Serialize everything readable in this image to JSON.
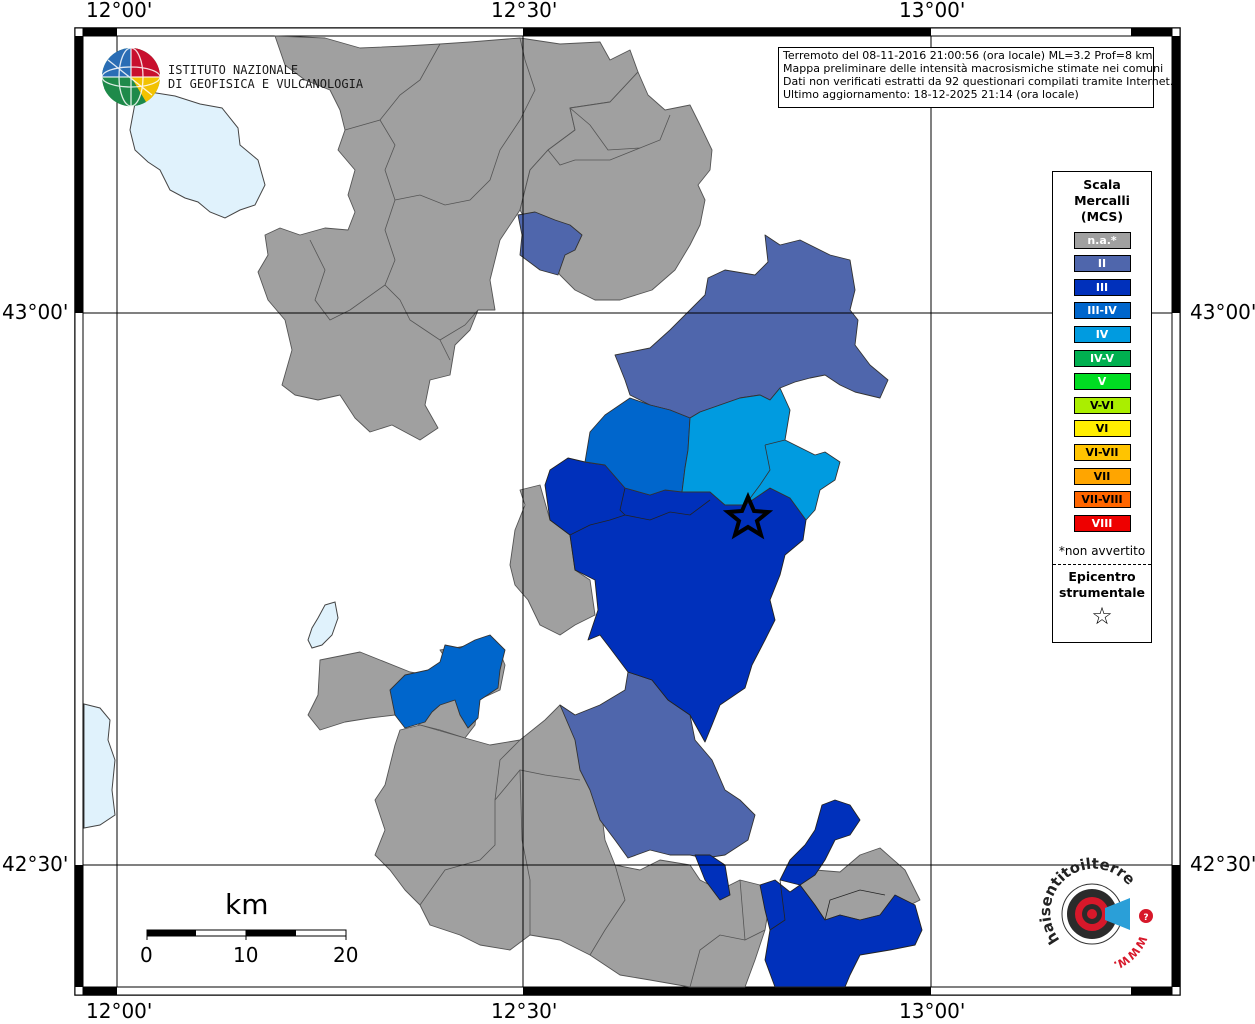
{
  "info": {
    "lines": [
      "Terremoto del 08-11-2016 21:00:56 (ora locale) ML=3.2 Prof=8 km",
      "Mappa preliminare delle intensità macrosismiche stimate nei comuni",
      "Dati non verificati estratti da 92 questionari compilati tramite Internet.",
      "Ultimo aggiornamento: 18-12-2025 21:14 (ora locale)"
    ]
  },
  "ingv": {
    "line1": "ISTITUTO NAZIONALE",
    "line2": "DI GEOFISICA E VULCANOLOGIA"
  },
  "hst": {
    "text": "haisentitoilterremoto.it",
    "www": "WWW."
  },
  "axes": {
    "lon_top": [
      "12°00'",
      "12°30'",
      "13°00'"
    ],
    "lon_bottom": [
      "12°00'",
      "12°30'",
      "13°00'"
    ],
    "lat_left": [
      "43°00'",
      "42°30'"
    ],
    "lat_right": [
      "43°00'",
      "42°30'"
    ]
  },
  "legend": {
    "title": [
      "Scala",
      "Mercalli",
      "(MCS)"
    ],
    "items": [
      {
        "label": "n.a.*",
        "color": "#a0a0a0"
      },
      {
        "label": "II",
        "color": "#4f66ac"
      },
      {
        "label": "III",
        "color": "#0030bb"
      },
      {
        "label": "III-IV",
        "color": "#0066cc"
      },
      {
        "label": "IV",
        "color": "#009be0"
      },
      {
        "label": "IV-V",
        "color": "#00b050"
      },
      {
        "label": "V",
        "color": "#00dd22"
      },
      {
        "label": "V-VI",
        "color": "#aaee00"
      },
      {
        "label": "VI",
        "color": "#ffee00"
      },
      {
        "label": "VI-VII",
        "color": "#ffc400"
      },
      {
        "label": "VII",
        "color": "#ffa500"
      },
      {
        "label": "VII-VIII",
        "color": "#ff6600"
      },
      {
        "label": "VIII",
        "color": "#ee0000"
      }
    ],
    "note": "*non avvertito",
    "epicenter": [
      "Epicentro",
      "strumentale"
    ]
  },
  "scale": {
    "unit": "km",
    "ticks": [
      "0",
      "10",
      "20"
    ]
  },
  "colors": {
    "na": "#a0a0a0",
    "II": "#4f66ac",
    "III": "#0030bb",
    "III_IV": "#0066cc",
    "IV": "#009be0",
    "lake": "#e0f2fc"
  }
}
